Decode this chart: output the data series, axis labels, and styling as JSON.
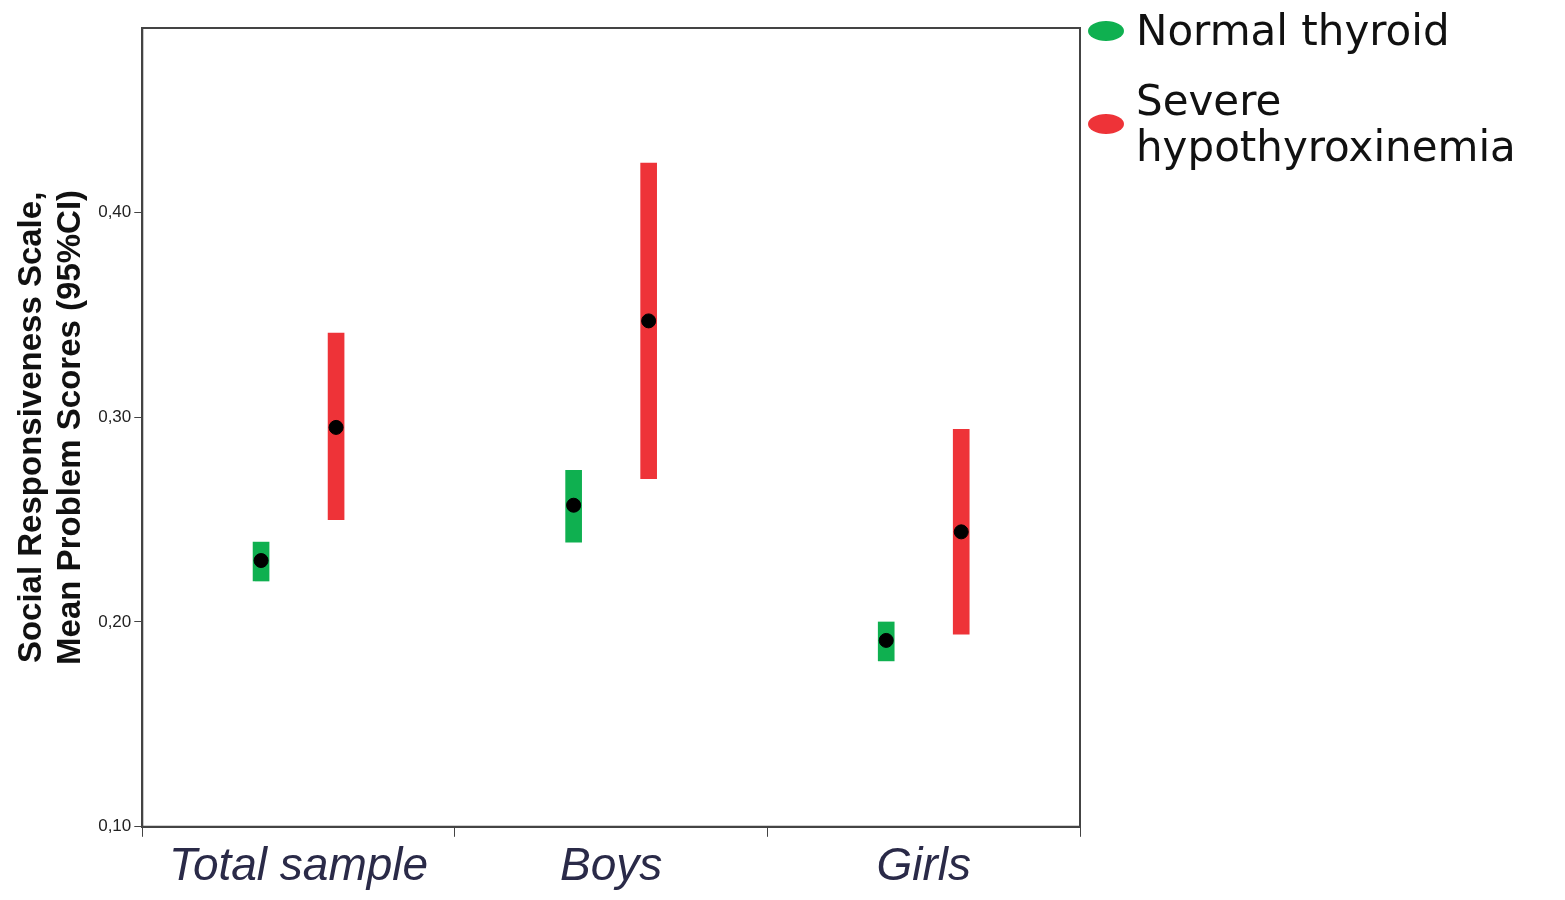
{
  "chart_data": {
    "type": "bar",
    "ylabel": "Social Responsiveness Scale,\nMean Problem Scores (95%CI)",
    "categories": [
      "Total sample",
      "Boys",
      "Girls"
    ],
    "ylim": [
      0.1,
      0.49
    ],
    "yticks": [
      {
        "value": 0.1,
        "label": "0,10"
      },
      {
        "value": 0.2,
        "label": "0,20"
      },
      {
        "value": 0.3,
        "label": "0,30"
      },
      {
        "value": 0.4,
        "label": "0,40"
      }
    ],
    "grid": false,
    "legend": "top right",
    "marker": "circle",
    "series": [
      {
        "name": "Normal thyroid",
        "color": "#0fb050",
        "base": [
          0.22,
          0.239,
          0.181
        ],
        "values": [
          0.019,
          0.035,
          0.019
        ]
      },
      {
        "name": "Severe hypothyroxinemia",
        "color": "#ee3338",
        "base": [
          0.25,
          0.27,
          0.194
        ],
        "values": [
          0.091,
          0.154,
          0.1
        ]
      },
      {
        "type": "scatter",
        "color": "#000000",
        "x": [
          "Total sample",
          "Boys",
          "Girls"
        ],
        "values": [
          0.23,
          0.257,
          0.191
        ]
      },
      {
        "type": "scatter",
        "color": "#000000",
        "x": [
          "Total sample",
          "Boys",
          "Girls"
        ],
        "values": [
          0.295,
          0.347,
          0.244
        ]
      }
    ]
  }
}
